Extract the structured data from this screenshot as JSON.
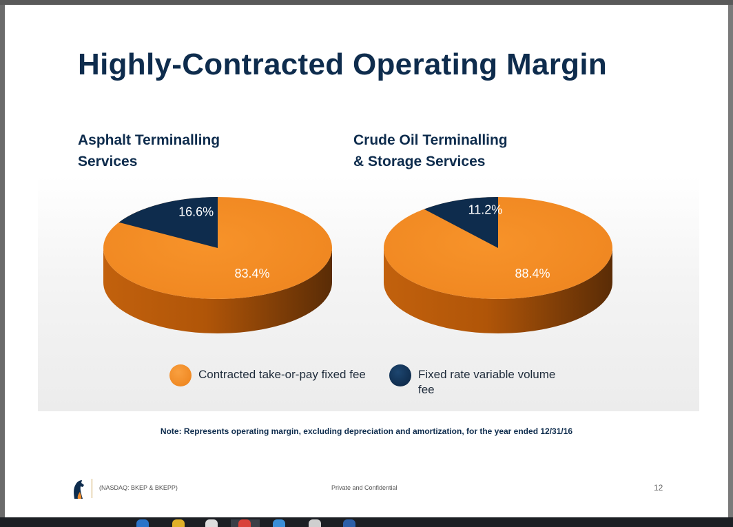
{
  "slide": {
    "title": "Highly-Contracted Operating Margin",
    "note": "Note: Represents operating margin, excluding depreciation and amortization, for the year ended 12/31/16",
    "footer": {
      "ticker": "(NASDAQ: BKEP & BKEPP)",
      "confidential": "Private and Confidential",
      "page_number": "12"
    }
  },
  "colors": {
    "contracted": "#f28c28",
    "variable": "#0e2c4d",
    "title": "#0e2c4d"
  },
  "legend": [
    {
      "label": "Contracted take-or-pay fixed fee"
    },
    {
      "label": "Fixed rate variable volume\nfee"
    }
  ],
  "chart_data": [
    {
      "type": "pie",
      "title": "Asphalt Terminalling\nServices",
      "categories": [
        "Contracted take-or-pay fixed fee",
        "Fixed rate variable volume fee"
      ],
      "values": [
        83.4,
        16.6
      ],
      "labels": [
        "83.4%",
        "16.6%"
      ],
      "legend": "bottom"
    },
    {
      "type": "pie",
      "title": "Crude Oil Terminalling\n& Storage Services",
      "categories": [
        "Contracted take-or-pay fixed fee",
        "Fixed rate variable volume fee"
      ],
      "values": [
        88.4,
        11.2
      ],
      "labels": [
        "88.4%",
        "11.2%"
      ],
      "legend": "bottom"
    }
  ]
}
